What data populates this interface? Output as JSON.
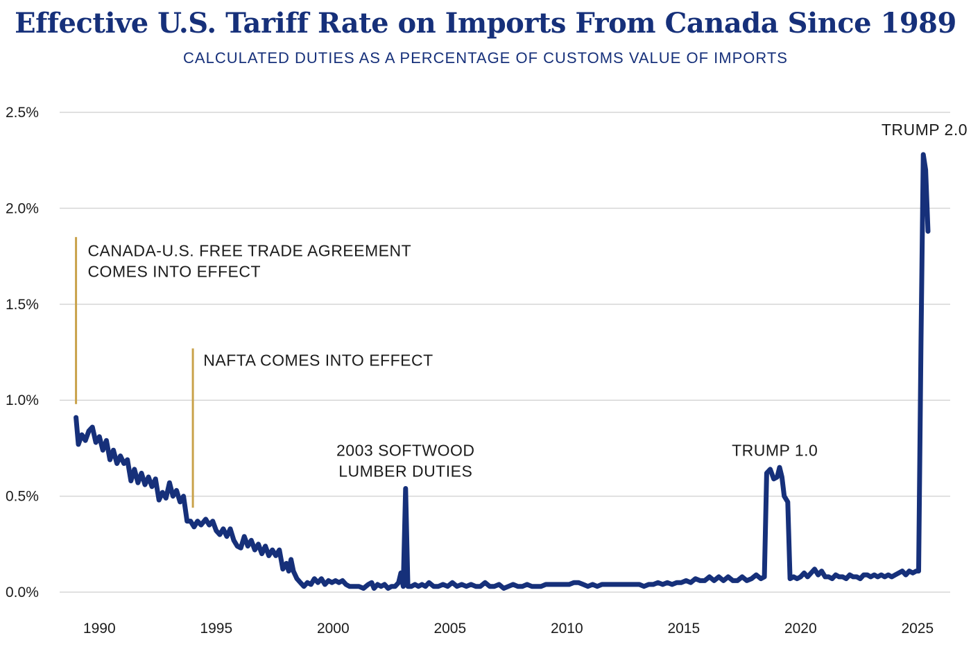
{
  "title": "Effective U.S. Tariff Rate on Imports From Canada Since 1989",
  "subtitle": "CALCULATED DUTIES AS A PERCENTAGE OF CUSTOMS VALUE OF IMPORTS",
  "colors": {
    "line": "#16307a",
    "title": "#16307a",
    "event_marker": "#c9a24a",
    "grid": "#d6d6d6",
    "text": "#1b1b1b"
  },
  "chart_data": {
    "type": "line",
    "title": "Effective U.S. Tariff Rate on Imports From Canada Since 1989",
    "subtitle": "CALCULATED DUTIES AS A PERCENTAGE OF CUSTOMS VALUE OF IMPORTS",
    "xlabel": "",
    "ylabel": "",
    "xlim": [
      1988.3,
      2026.4
    ],
    "ylim": [
      0,
      2.5
    ],
    "grid": "horizontal",
    "legend": "none",
    "x_ticks": [
      1990,
      1995,
      2000,
      2005,
      2010,
      2015,
      2020,
      2025
    ],
    "x_tick_labels": [
      "1990",
      "1995",
      "2000",
      "2005",
      "2010",
      "2015",
      "2020",
      "2025"
    ],
    "y_ticks": [
      0,
      0.5,
      1.0,
      1.5,
      2.0,
      2.5
    ],
    "y_tick_labels": [
      "0.0%",
      "0.5%",
      "1.0%",
      "1.5%",
      "2.0%",
      "2.5%"
    ],
    "series": [
      {
        "points": [
          [
            1989.0,
            0.91
          ],
          [
            1989.1,
            0.77
          ],
          [
            1989.25,
            0.82
          ],
          [
            1989.4,
            0.79
          ],
          [
            1989.55,
            0.84
          ],
          [
            1989.7,
            0.86
          ],
          [
            1989.85,
            0.78
          ],
          [
            1990.0,
            0.81
          ],
          [
            1990.15,
            0.74
          ],
          [
            1990.3,
            0.79
          ],
          [
            1990.45,
            0.69
          ],
          [
            1990.6,
            0.74
          ],
          [
            1990.75,
            0.67
          ],
          [
            1990.9,
            0.71
          ],
          [
            1991.05,
            0.67
          ],
          [
            1991.2,
            0.69
          ],
          [
            1991.35,
            0.58
          ],
          [
            1991.5,
            0.64
          ],
          [
            1991.65,
            0.57
          ],
          [
            1991.8,
            0.62
          ],
          [
            1991.95,
            0.56
          ],
          [
            1992.1,
            0.6
          ],
          [
            1992.25,
            0.55
          ],
          [
            1992.4,
            0.59
          ],
          [
            1992.55,
            0.48
          ],
          [
            1992.7,
            0.52
          ],
          [
            1992.85,
            0.49
          ],
          [
            1993.0,
            0.57
          ],
          [
            1993.15,
            0.5
          ],
          [
            1993.3,
            0.53
          ],
          [
            1993.45,
            0.47
          ],
          [
            1993.6,
            0.5
          ],
          [
            1993.75,
            0.37
          ],
          [
            1993.9,
            0.37
          ],
          [
            1994.05,
            0.34
          ],
          [
            1994.2,
            0.37
          ],
          [
            1994.35,
            0.35
          ],
          [
            1994.55,
            0.38
          ],
          [
            1994.7,
            0.35
          ],
          [
            1994.85,
            0.37
          ],
          [
            1995.0,
            0.32
          ],
          [
            1995.15,
            0.3
          ],
          [
            1995.3,
            0.33
          ],
          [
            1995.45,
            0.29
          ],
          [
            1995.6,
            0.33
          ],
          [
            1995.75,
            0.27
          ],
          [
            1995.9,
            0.24
          ],
          [
            1996.05,
            0.23
          ],
          [
            1996.2,
            0.29
          ],
          [
            1996.35,
            0.24
          ],
          [
            1996.5,
            0.27
          ],
          [
            1996.65,
            0.22
          ],
          [
            1996.8,
            0.25
          ],
          [
            1996.95,
            0.2
          ],
          [
            1997.1,
            0.24
          ],
          [
            1997.25,
            0.19
          ],
          [
            1997.4,
            0.22
          ],
          [
            1997.55,
            0.19
          ],
          [
            1997.7,
            0.22
          ],
          [
            1997.85,
            0.12
          ],
          [
            1998.0,
            0.15
          ],
          [
            1998.1,
            0.11
          ],
          [
            1998.2,
            0.17
          ],
          [
            1998.3,
            0.11
          ],
          [
            1998.45,
            0.07
          ],
          [
            1998.6,
            0.05
          ],
          [
            1998.75,
            0.03
          ],
          [
            1998.9,
            0.05
          ],
          [
            1999.05,
            0.04
          ],
          [
            1999.2,
            0.07
          ],
          [
            1999.35,
            0.05
          ],
          [
            1999.5,
            0.07
          ],
          [
            1999.65,
            0.04
          ],
          [
            1999.8,
            0.06
          ],
          [
            1999.95,
            0.05
          ],
          [
            2000.1,
            0.06
          ],
          [
            2000.25,
            0.05
          ],
          [
            2000.4,
            0.06
          ],
          [
            2000.55,
            0.04
          ],
          [
            2000.7,
            0.03
          ],
          [
            2000.9,
            0.03
          ],
          [
            2001.1,
            0.03
          ],
          [
            2001.3,
            0.02
          ],
          [
            2001.5,
            0.04
          ],
          [
            2001.65,
            0.05
          ],
          [
            2001.75,
            0.02
          ],
          [
            2001.9,
            0.04
          ],
          [
            2002.05,
            0.03
          ],
          [
            2002.2,
            0.04
          ],
          [
            2002.35,
            0.02
          ],
          [
            2002.5,
            0.03
          ],
          [
            2002.65,
            0.03
          ],
          [
            2002.8,
            0.05
          ],
          [
            2002.9,
            0.1
          ],
          [
            2003.0,
            0.03
          ],
          [
            2003.1,
            0.54
          ],
          [
            2003.2,
            0.03
          ],
          [
            2003.35,
            0.03
          ],
          [
            2003.5,
            0.04
          ],
          [
            2003.65,
            0.03
          ],
          [
            2003.8,
            0.04
          ],
          [
            2003.95,
            0.03
          ],
          [
            2004.1,
            0.05
          ],
          [
            2004.3,
            0.03
          ],
          [
            2004.5,
            0.03
          ],
          [
            2004.7,
            0.04
          ],
          [
            2004.9,
            0.03
          ],
          [
            2005.1,
            0.05
          ],
          [
            2005.3,
            0.03
          ],
          [
            2005.5,
            0.04
          ],
          [
            2005.7,
            0.03
          ],
          [
            2005.9,
            0.04
          ],
          [
            2006.1,
            0.03
          ],
          [
            2006.3,
            0.03
          ],
          [
            2006.5,
            0.05
          ],
          [
            2006.7,
            0.03
          ],
          [
            2006.9,
            0.03
          ],
          [
            2007.1,
            0.04
          ],
          [
            2007.3,
            0.02
          ],
          [
            2007.5,
            0.03
          ],
          [
            2007.7,
            0.04
          ],
          [
            2007.9,
            0.03
          ],
          [
            2008.1,
            0.03
          ],
          [
            2008.3,
            0.04
          ],
          [
            2008.5,
            0.03
          ],
          [
            2008.7,
            0.03
          ],
          [
            2008.9,
            0.03
          ],
          [
            2009.1,
            0.04
          ],
          [
            2009.3,
            0.04
          ],
          [
            2009.5,
            0.04
          ],
          [
            2009.7,
            0.04
          ],
          [
            2009.9,
            0.04
          ],
          [
            2010.1,
            0.04
          ],
          [
            2010.3,
            0.05
          ],
          [
            2010.5,
            0.05
          ],
          [
            2010.7,
            0.04
          ],
          [
            2010.9,
            0.03
          ],
          [
            2011.1,
            0.04
          ],
          [
            2011.3,
            0.03
          ],
          [
            2011.5,
            0.04
          ],
          [
            2011.7,
            0.04
          ],
          [
            2011.9,
            0.04
          ],
          [
            2012.1,
            0.04
          ],
          [
            2012.3,
            0.04
          ],
          [
            2012.5,
            0.04
          ],
          [
            2012.7,
            0.04
          ],
          [
            2012.9,
            0.04
          ],
          [
            2013.1,
            0.04
          ],
          [
            2013.3,
            0.03
          ],
          [
            2013.5,
            0.04
          ],
          [
            2013.7,
            0.04
          ],
          [
            2013.9,
            0.05
          ],
          [
            2014.1,
            0.04
          ],
          [
            2014.3,
            0.05
          ],
          [
            2014.5,
            0.04
          ],
          [
            2014.7,
            0.05
          ],
          [
            2014.9,
            0.05
          ],
          [
            2015.1,
            0.06
          ],
          [
            2015.3,
            0.05
          ],
          [
            2015.5,
            0.07
          ],
          [
            2015.7,
            0.06
          ],
          [
            2015.9,
            0.06
          ],
          [
            2016.1,
            0.08
          ],
          [
            2016.3,
            0.06
          ],
          [
            2016.5,
            0.08
          ],
          [
            2016.7,
            0.06
          ],
          [
            2016.9,
            0.08
          ],
          [
            2017.1,
            0.06
          ],
          [
            2017.3,
            0.06
          ],
          [
            2017.5,
            0.08
          ],
          [
            2017.7,
            0.06
          ],
          [
            2017.9,
            0.07
          ],
          [
            2018.1,
            0.09
          ],
          [
            2018.3,
            0.07
          ],
          [
            2018.45,
            0.08
          ],
          [
            2018.55,
            0.62
          ],
          [
            2018.7,
            0.64
          ],
          [
            2018.85,
            0.59
          ],
          [
            2019.0,
            0.6
          ],
          [
            2019.1,
            0.65
          ],
          [
            2019.2,
            0.6
          ],
          [
            2019.3,
            0.5
          ],
          [
            2019.45,
            0.47
          ],
          [
            2019.55,
            0.07
          ],
          [
            2019.7,
            0.08
          ],
          [
            2019.85,
            0.07
          ],
          [
            2020.0,
            0.08
          ],
          [
            2020.15,
            0.1
          ],
          [
            2020.3,
            0.08
          ],
          [
            2020.45,
            0.1
          ],
          [
            2020.6,
            0.12
          ],
          [
            2020.75,
            0.09
          ],
          [
            2020.9,
            0.11
          ],
          [
            2021.05,
            0.08
          ],
          [
            2021.2,
            0.08
          ],
          [
            2021.35,
            0.07
          ],
          [
            2021.5,
            0.09
          ],
          [
            2021.65,
            0.08
          ],
          [
            2021.8,
            0.08
          ],
          [
            2021.95,
            0.07
          ],
          [
            2022.1,
            0.09
          ],
          [
            2022.25,
            0.08
          ],
          [
            2022.4,
            0.08
          ],
          [
            2022.55,
            0.07
          ],
          [
            2022.7,
            0.09
          ],
          [
            2022.85,
            0.09
          ],
          [
            2023.0,
            0.08
          ],
          [
            2023.15,
            0.09
          ],
          [
            2023.3,
            0.08
          ],
          [
            2023.45,
            0.09
          ],
          [
            2023.6,
            0.08
          ],
          [
            2023.75,
            0.09
          ],
          [
            2023.9,
            0.08
          ],
          [
            2024.05,
            0.09
          ],
          [
            2024.2,
            0.1
          ],
          [
            2024.35,
            0.11
          ],
          [
            2024.5,
            0.09
          ],
          [
            2024.65,
            0.11
          ],
          [
            2024.8,
            0.1
          ],
          [
            2024.95,
            0.11
          ],
          [
            2025.05,
            0.11
          ],
          [
            2025.15,
            1.3
          ],
          [
            2025.25,
            2.28
          ],
          [
            2025.35,
            2.2
          ],
          [
            2025.45,
            1.88
          ]
        ]
      }
    ],
    "event_markers": [
      {
        "x": 1989.0,
        "y_from": 0.98,
        "y_to": 1.85
      },
      {
        "x": 1994.0,
        "y_from": 0.44,
        "y_to": 1.27
      }
    ],
    "annotations": [
      {
        "id": "fta",
        "lines": [
          "CANADA-U.S. FREE TRADE AGREEMENT",
          "COMES INTO EFFECT"
        ],
        "x": 1989.5,
        "y": 1.75,
        "anchor": "start"
      },
      {
        "id": "nafta",
        "lines": [
          "NAFTA COMES INTO EFFECT"
        ],
        "x": 1994.45,
        "y": 1.18,
        "anchor": "start"
      },
      {
        "id": "softwood",
        "lines": [
          "2003 SOFTWOOD",
          "LUMBER DUTIES"
        ],
        "x": 2003.1,
        "y": 0.71,
        "anchor": "middle"
      },
      {
        "id": "trump1",
        "lines": [
          "TRUMP 1.0"
        ],
        "x": 2018.9,
        "y": 0.71,
        "anchor": "middle"
      },
      {
        "id": "trump2",
        "lines": [
          "TRUMP 2.0"
        ],
        "x": 2025.3,
        "y": 2.38,
        "anchor": "middle"
      }
    ]
  }
}
